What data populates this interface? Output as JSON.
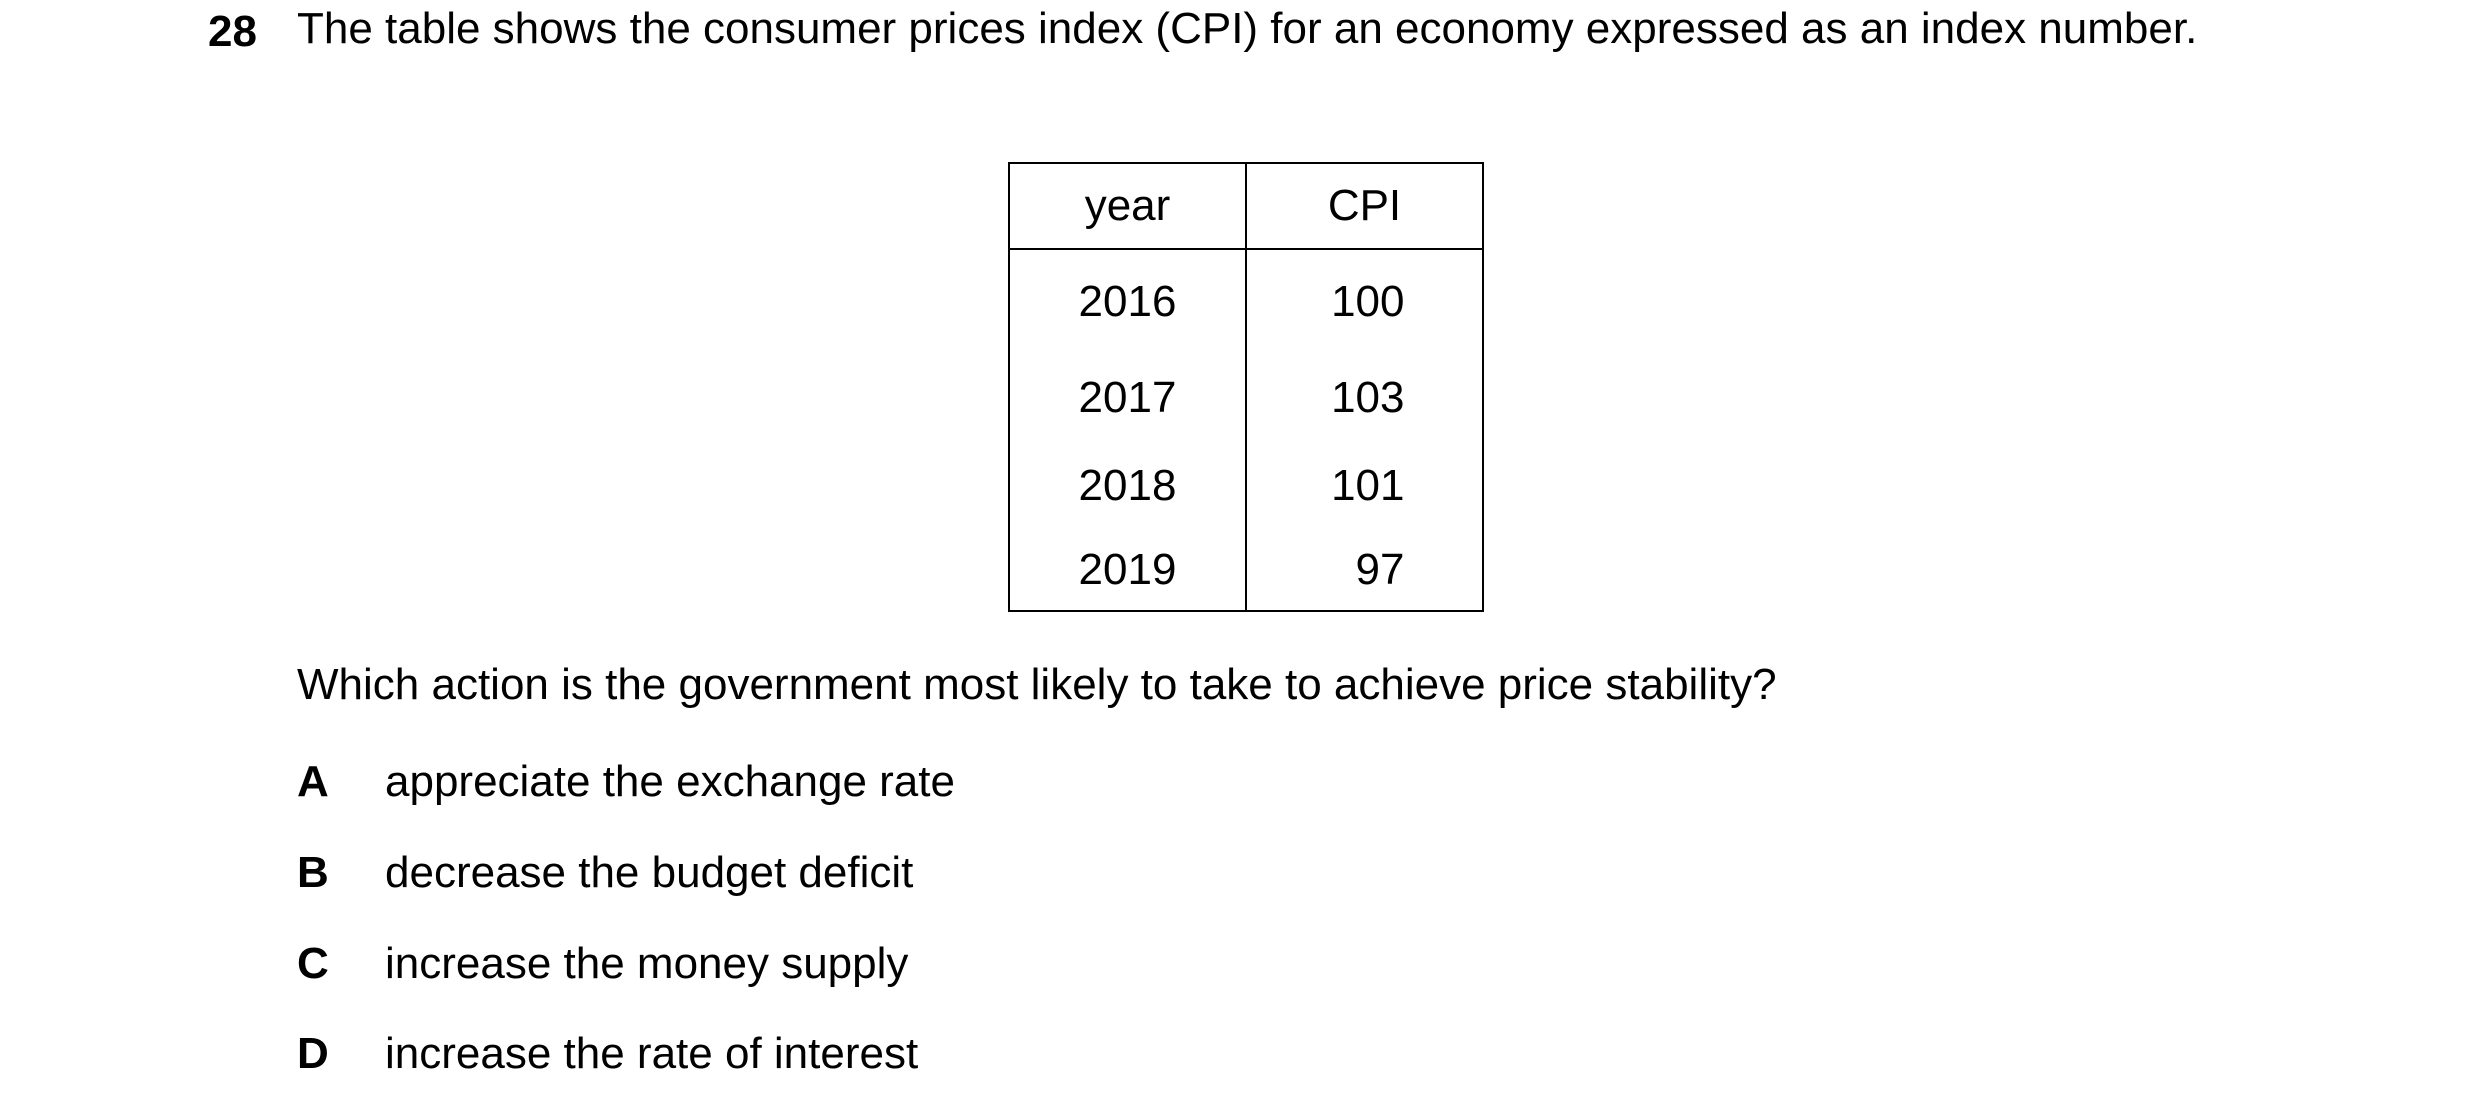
{
  "question": {
    "number": "28",
    "stem": "The table shows the consumer prices index (CPI) for an economy expressed as an index number.",
    "prompt": "Which action is the government most likely to take to achieve price stability?"
  },
  "table": {
    "headers": [
      "year",
      "CPI"
    ],
    "rows": [
      {
        "year": "2016",
        "cpi": "100"
      },
      {
        "year": "2017",
        "cpi": "103"
      },
      {
        "year": "2018",
        "cpi": "101"
      },
      {
        "year": "2019",
        "cpi": "97"
      }
    ]
  },
  "options": [
    {
      "letter": "A",
      "text": "appreciate the exchange rate"
    },
    {
      "letter": "B",
      "text": "decrease the budget deficit"
    },
    {
      "letter": "C",
      "text": "increase the money supply"
    },
    {
      "letter": "D",
      "text": "increase the rate of interest"
    }
  ]
}
